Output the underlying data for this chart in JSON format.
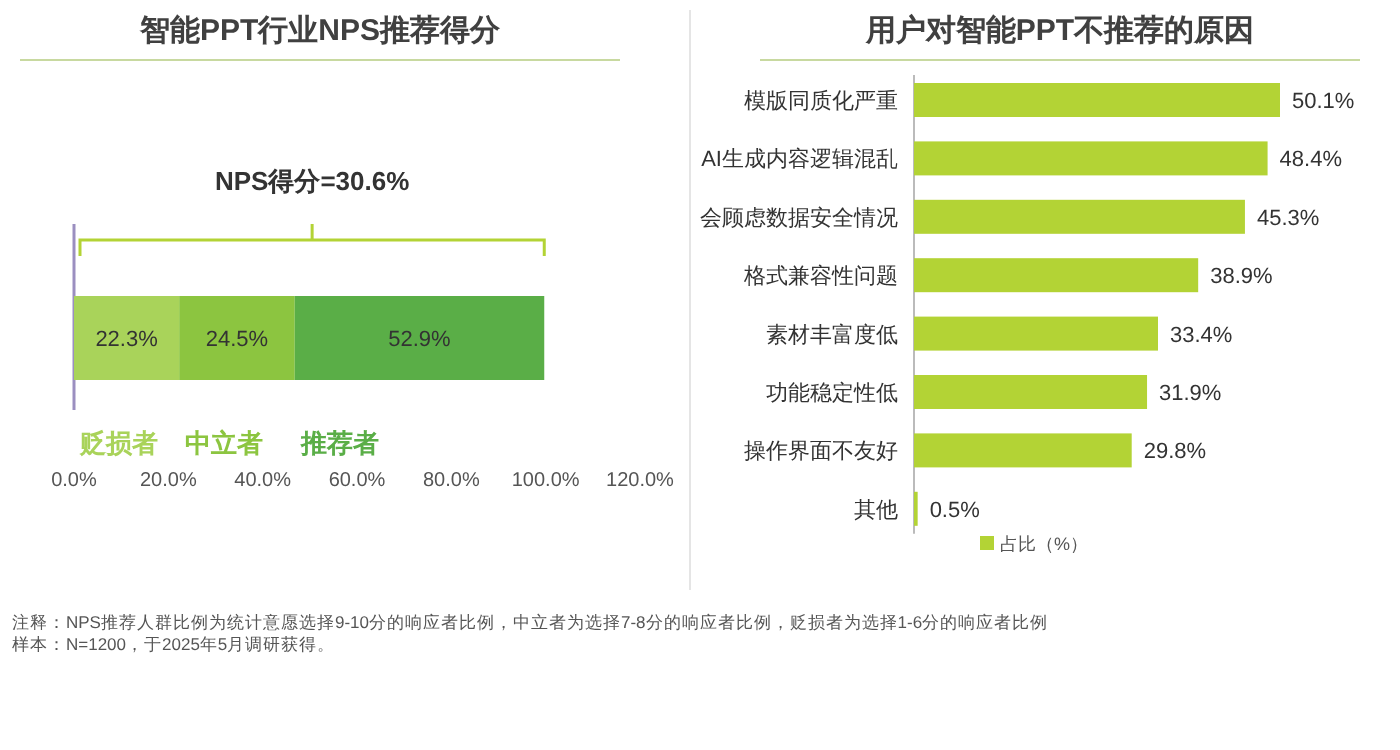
{
  "chart_data": [
    {
      "type": "bar",
      "orientation": "horizontal",
      "stacked": true,
      "title": "智能PPT行业NPS推荐得分",
      "categories": [
        null
      ],
      "series": [
        {
          "name": "贬损者",
          "color": "#a9d35a",
          "values": [
            22.3
          ],
          "value_labels": [
            "22.3%"
          ]
        },
        {
          "name": "中立者",
          "color": "#8cc540",
          "values": [
            24.5
          ],
          "value_labels": [
            "24.5%"
          ]
        },
        {
          "name": "推荐者",
          "color": "#5aae47",
          "values": [
            52.9
          ],
          "value_labels": [
            "52.9%"
          ]
        }
      ],
      "xlim": [
        0,
        120
      ],
      "xticks": [
        {
          "value": 0,
          "label": "0.0%"
        },
        {
          "value": 20,
          "label": "20.0%"
        },
        {
          "value": 40,
          "label": "40.0%"
        },
        {
          "value": 60,
          "label": "60.0%"
        },
        {
          "value": 80,
          "label": "80.0%"
        },
        {
          "value": 100,
          "label": "100.0%"
        },
        {
          "value": 120,
          "label": "120.0%"
        }
      ],
      "annotations": [
        "NPS得分=30.6%",
        "注释：NPS推荐人群比例为统计意愿选择9-10分的响应者比例，中立者为选择7-8分的响应者比例，贬损者为选择1-6分的响应者比例",
        "样本：N=1200，于2025年5月调研获得。"
      ]
    },
    {
      "type": "bar",
      "orientation": "horizontal",
      "title": "用户对智能PPT不推荐的原因",
      "categories": [
        "模版同质化严重",
        "AI生成内容逻辑混乱",
        "会顾虑数据安全情况",
        "格式兼容性问题",
        "素材丰富度低",
        "功能稳定性低",
        "操作界面不友好",
        "其他"
      ],
      "series": [
        {
          "name": "占比（%）",
          "color": "#b3d335",
          "values": [
            50.1,
            48.4,
            45.3,
            38.9,
            33.4,
            31.9,
            29.8,
            0.5
          ],
          "value_labels": [
            "50.1%",
            "48.4%",
            "45.3%",
            "38.9%",
            "33.4%",
            "31.9%",
            "29.8%",
            "0.5%"
          ]
        }
      ],
      "legend": "bottom left"
    }
  ]
}
